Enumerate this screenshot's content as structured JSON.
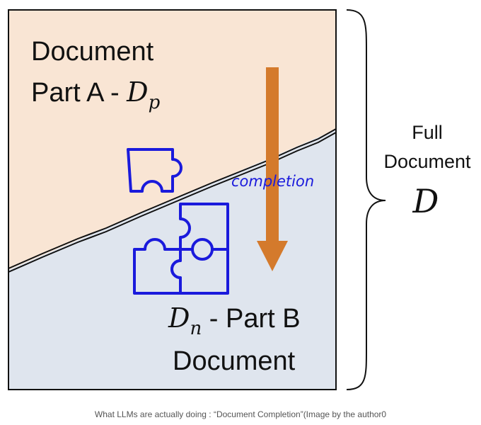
{
  "part_a": {
    "line1": "Document",
    "line2_text": "Part A - ",
    "math_symbol": "D",
    "math_subscript": "p"
  },
  "part_b": {
    "math_symbol": "D",
    "math_subscript": "n",
    "line1_text": " - Part B",
    "line2": "Document"
  },
  "arrow_label": "completion",
  "full_document": {
    "line1": "Full",
    "line2": "Document",
    "symbol": "D"
  },
  "caption": "What LLMs are actually doing : “Document Completion”(Image by the author0",
  "colors": {
    "part_a_fill": "#f9e5d4",
    "part_b_fill": "#dfe5ee",
    "arrow": "#d47a2c",
    "puzzle": "#1a1adc",
    "border": "#111111"
  },
  "icons": [
    "puzzle-piece-icon",
    "puzzle-group-icon",
    "down-arrow-icon",
    "curly-brace-icon"
  ]
}
